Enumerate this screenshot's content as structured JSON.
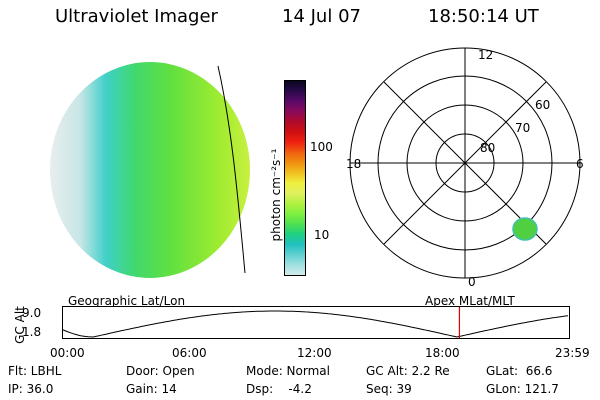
{
  "header": {
    "title": "Ultraviolet Imager",
    "date": "14 Jul 07",
    "time": "18:50:14 UT"
  },
  "colorbar": {
    "label": "photon cm⁻²s⁻¹",
    "ticks": [
      "100",
      "10"
    ],
    "colors": [
      "#0a0520",
      "#2a0a4a",
      "#5a0a6a",
      "#8a0a5a",
      "#b00a2a",
      "#d01010",
      "#f02010",
      "#f06010",
      "#f09010",
      "#f0c020",
      "#f0f040",
      "#e0f060",
      "#b0f040",
      "#80f040",
      "#50e050",
      "#20d080",
      "#20c0c0",
      "#60d0d0",
      "#a0e0e0",
      "#d0ecec"
    ]
  },
  "left_map": {
    "caption": "Geographic Lat/Lon"
  },
  "polar": {
    "caption": "Apex MLat/MLT",
    "mlt_labels": {
      "top": "12",
      "bottom": "0",
      "left": "18",
      "right": "6"
    },
    "lat_labels": [
      "60",
      "70",
      "80"
    ]
  },
  "altitude_plot": {
    "ylabel": "GC Alt",
    "ymax_label": "9.0",
    "ymin_label": "1.8",
    "x_labels": [
      "00:00",
      "06:00",
      "12:00",
      "18:00",
      "23:59"
    ],
    "marker_time_fraction": 0.785
  },
  "info": {
    "flt": "Flt: LBHL",
    "ip": "IP: 36.0",
    "door": "Door: Open",
    "gain": "Gain: 14",
    "mode": "Mode: Normal",
    "dsp": "Dsp:    -4.2",
    "gcalt": "GC Alt: 2.2 Re",
    "seq": "Seq: 39",
    "glat": "GLat:  66.6",
    "glon": "GLon: 121.7"
  }
}
